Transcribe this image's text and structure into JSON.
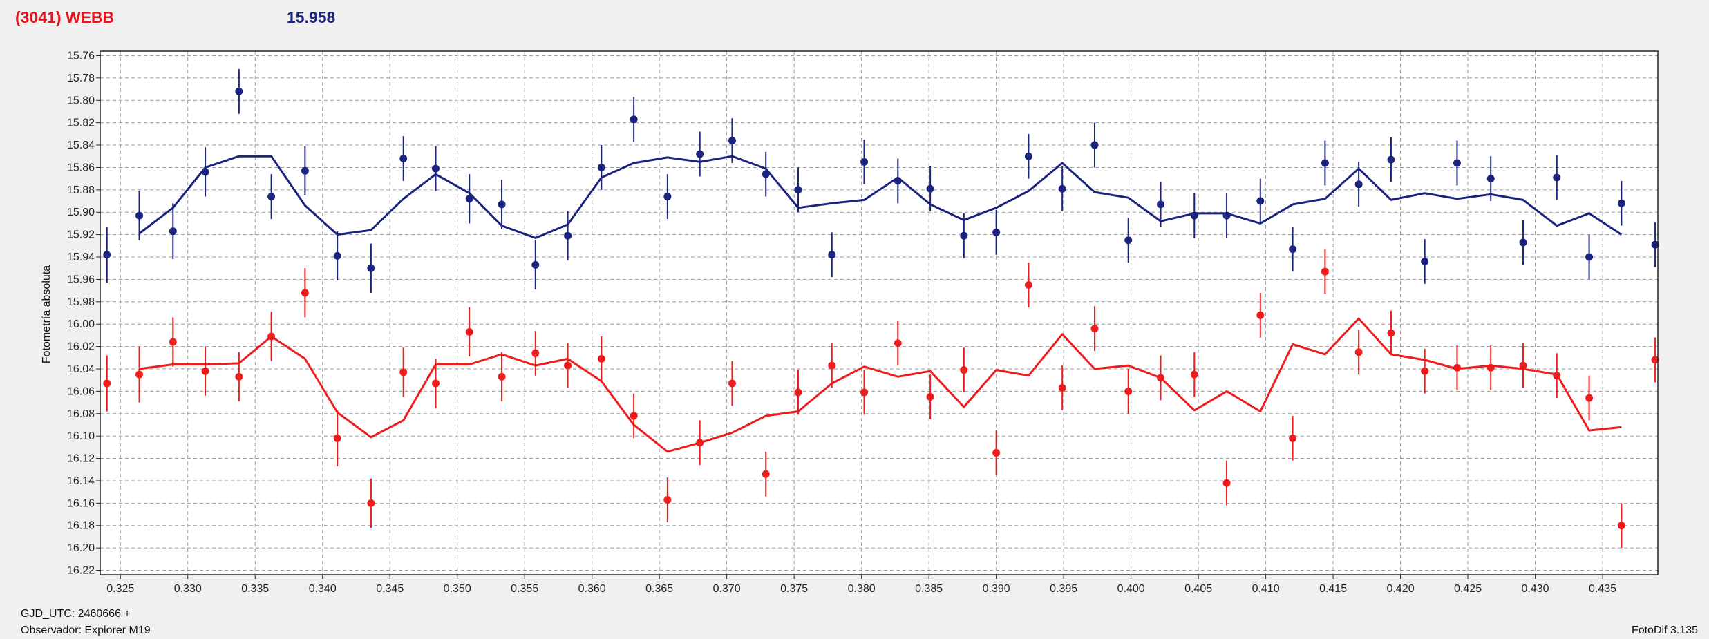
{
  "header": {
    "title": "(3041) WEBB",
    "value": "15.958"
  },
  "footer": {
    "gjd": "GJD_UTC: 2460666 +",
    "observer": "Observador: Explorer M19",
    "software": "FotoDif 3.135"
  },
  "colors": {
    "blue_series": "#1a237e",
    "red_series": "#ee1c1c",
    "title": "#e8141c",
    "value": "#1a2580"
  },
  "chart_data": {
    "type": "scatter",
    "ylabel": "Fotometría absoluta",
    "xlabel": "",
    "xlim": [
      0.3235,
      0.4391
    ],
    "ylim": [
      16.224,
      15.756
    ],
    "y_inverted": true,
    "grid": true,
    "xticks": [
      "0.325",
      "0.330",
      "0.335",
      "0.340",
      "0.345",
      "0.350",
      "0.355",
      "0.360",
      "0.365",
      "0.370",
      "0.375",
      "0.380",
      "0.385",
      "0.390",
      "0.395",
      "0.400",
      "0.405",
      "0.410",
      "0.415",
      "0.420",
      "0.425",
      "0.430",
      "0.435"
    ],
    "yticks": [
      "15.76",
      "15.78",
      "15.80",
      "15.82",
      "15.84",
      "15.86",
      "15.88",
      "15.90",
      "15.92",
      "15.94",
      "15.96",
      "15.98",
      "16.00",
      "16.02",
      "16.04",
      "16.06",
      "16.08",
      "16.10",
      "16.12",
      "16.14",
      "16.16",
      "16.18",
      "16.20",
      "16.22"
    ],
    "series": [
      {
        "color": "#1a237e",
        "points": [
          {
            "x": 0.324,
            "y": 15.938,
            "e": 0.025
          },
          {
            "x": 0.3264,
            "y": 15.903,
            "e": 0.022
          },
          {
            "x": 0.3289,
            "y": 15.917,
            "e": 0.025
          },
          {
            "x": 0.3313,
            "y": 15.864,
            "e": 0.022
          },
          {
            "x": 0.3338,
            "y": 15.792,
            "e": 0.02
          },
          {
            "x": 0.3362,
            "y": 15.886,
            "e": 0.02
          },
          {
            "x": 0.3387,
            "y": 15.863,
            "e": 0.022
          },
          {
            "x": 0.3411,
            "y": 15.939,
            "e": 0.022
          },
          {
            "x": 0.3436,
            "y": 15.95,
            "e": 0.022
          },
          {
            "x": 0.346,
            "y": 15.852,
            "e": 0.02
          },
          {
            "x": 0.3484,
            "y": 15.861,
            "e": 0.02
          },
          {
            "x": 0.3509,
            "y": 15.888,
            "e": 0.022
          },
          {
            "x": 0.3533,
            "y": 15.893,
            "e": 0.022
          },
          {
            "x": 0.3558,
            "y": 15.947,
            "e": 0.022
          },
          {
            "x": 0.3582,
            "y": 15.921,
            "e": 0.022
          },
          {
            "x": 0.3607,
            "y": 15.86,
            "e": 0.02
          },
          {
            "x": 0.3631,
            "y": 15.817,
            "e": 0.02
          },
          {
            "x": 0.3656,
            "y": 15.886,
            "e": 0.02
          },
          {
            "x": 0.368,
            "y": 15.848,
            "e": 0.02
          },
          {
            "x": 0.3704,
            "y": 15.836,
            "e": 0.02
          },
          {
            "x": 0.3729,
            "y": 15.866,
            "e": 0.02
          },
          {
            "x": 0.3753,
            "y": 15.88,
            "e": 0.02
          },
          {
            "x": 0.3778,
            "y": 15.938,
            "e": 0.02
          },
          {
            "x": 0.3802,
            "y": 15.855,
            "e": 0.02
          },
          {
            "x": 0.3827,
            "y": 15.872,
            "e": 0.02
          },
          {
            "x": 0.3851,
            "y": 15.879,
            "e": 0.02
          },
          {
            "x": 0.3876,
            "y": 15.921,
            "e": 0.02
          },
          {
            "x": 0.39,
            "y": 15.918,
            "e": 0.02
          },
          {
            "x": 0.3924,
            "y": 15.85,
            "e": 0.02
          },
          {
            "x": 0.3949,
            "y": 15.879,
            "e": 0.02
          },
          {
            "x": 0.3973,
            "y": 15.84,
            "e": 0.02
          },
          {
            "x": 0.3998,
            "y": 15.925,
            "e": 0.02
          },
          {
            "x": 0.4022,
            "y": 15.893,
            "e": 0.02
          },
          {
            "x": 0.4047,
            "y": 15.903,
            "e": 0.02
          },
          {
            "x": 0.4071,
            "y": 15.903,
            "e": 0.02
          },
          {
            "x": 0.4096,
            "y": 15.89,
            "e": 0.02
          },
          {
            "x": 0.412,
            "y": 15.933,
            "e": 0.02
          },
          {
            "x": 0.4144,
            "y": 15.856,
            "e": 0.02
          },
          {
            "x": 0.4169,
            "y": 15.875,
            "e": 0.02
          },
          {
            "x": 0.4193,
            "y": 15.853,
            "e": 0.02
          },
          {
            "x": 0.4218,
            "y": 15.944,
            "e": 0.02
          },
          {
            "x": 0.4242,
            "y": 15.856,
            "e": 0.02
          },
          {
            "x": 0.4267,
            "y": 15.87,
            "e": 0.02
          },
          {
            "x": 0.4291,
            "y": 15.927,
            "e": 0.02
          },
          {
            "x": 0.4316,
            "y": 15.869,
            "e": 0.02
          },
          {
            "x": 0.434,
            "y": 15.94,
            "e": 0.02
          },
          {
            "x": 0.4364,
            "y": 15.892,
            "e": 0.02
          },
          {
            "x": 0.4389,
            "y": 15.929,
            "e": 0.02
          }
        ],
        "line": [
          [
            0.3264,
            15.919
          ],
          [
            0.3289,
            15.896
          ],
          [
            0.3313,
            15.86
          ],
          [
            0.3338,
            15.85
          ],
          [
            0.3362,
            15.85
          ],
          [
            0.3387,
            15.894
          ],
          [
            0.3411,
            15.92
          ],
          [
            0.3436,
            15.916
          ],
          [
            0.346,
            15.888
          ],
          [
            0.3484,
            15.866
          ],
          [
            0.3509,
            15.883
          ],
          [
            0.3533,
            15.912
          ],
          [
            0.3558,
            15.923
          ],
          [
            0.3582,
            15.911
          ],
          [
            0.3607,
            15.869
          ],
          [
            0.3631,
            15.856
          ],
          [
            0.3656,
            15.851
          ],
          [
            0.368,
            15.855
          ],
          [
            0.3704,
            15.85
          ],
          [
            0.3729,
            15.861
          ],
          [
            0.3753,
            15.896
          ],
          [
            0.3778,
            15.892
          ],
          [
            0.3802,
            15.889
          ],
          [
            0.3827,
            15.869
          ],
          [
            0.3851,
            15.893
          ],
          [
            0.3876,
            15.907
          ],
          [
            0.39,
            15.896
          ],
          [
            0.3924,
            15.881
          ],
          [
            0.3949,
            15.856
          ],
          [
            0.3973,
            15.882
          ],
          [
            0.3998,
            15.887
          ],
          [
            0.4022,
            15.908
          ],
          [
            0.4047,
            15.901
          ],
          [
            0.4071,
            15.901
          ],
          [
            0.4096,
            15.91
          ],
          [
            0.412,
            15.893
          ],
          [
            0.4144,
            15.888
          ],
          [
            0.4169,
            15.861
          ],
          [
            0.4193,
            15.889
          ],
          [
            0.4218,
            15.883
          ],
          [
            0.4242,
            15.888
          ],
          [
            0.4267,
            15.884
          ],
          [
            0.4291,
            15.889
          ],
          [
            0.4316,
            15.912
          ],
          [
            0.434,
            15.901
          ],
          [
            0.4364,
            15.92
          ]
        ]
      },
      {
        "color": "#ee1c1c",
        "points": [
          {
            "x": 0.324,
            "y": 16.053,
            "e": 0.025
          },
          {
            "x": 0.3264,
            "y": 16.045,
            "e": 0.025
          },
          {
            "x": 0.3289,
            "y": 16.016,
            "e": 0.022
          },
          {
            "x": 0.3313,
            "y": 16.042,
            "e": 0.022
          },
          {
            "x": 0.3338,
            "y": 16.047,
            "e": 0.022
          },
          {
            "x": 0.3362,
            "y": 16.011,
            "e": 0.022
          },
          {
            "x": 0.3387,
            "y": 15.972,
            "e": 0.022
          },
          {
            "x": 0.3411,
            "y": 16.102,
            "e": 0.025
          },
          {
            "x": 0.3436,
            "y": 16.16,
            "e": 0.022
          },
          {
            "x": 0.346,
            "y": 16.043,
            "e": 0.022
          },
          {
            "x": 0.3484,
            "y": 16.053,
            "e": 0.022
          },
          {
            "x": 0.3509,
            "y": 16.007,
            "e": 0.022
          },
          {
            "x": 0.3533,
            "y": 16.047,
            "e": 0.022
          },
          {
            "x": 0.3558,
            "y": 16.026,
            "e": 0.02
          },
          {
            "x": 0.3582,
            "y": 16.037,
            "e": 0.02
          },
          {
            "x": 0.3607,
            "y": 16.031,
            "e": 0.02
          },
          {
            "x": 0.3631,
            "y": 16.082,
            "e": 0.02
          },
          {
            "x": 0.3656,
            "y": 16.157,
            "e": 0.02
          },
          {
            "x": 0.368,
            "y": 16.106,
            "e": 0.02
          },
          {
            "x": 0.3704,
            "y": 16.053,
            "e": 0.02
          },
          {
            "x": 0.3729,
            "y": 16.134,
            "e": 0.02
          },
          {
            "x": 0.3753,
            "y": 16.061,
            "e": 0.02
          },
          {
            "x": 0.3778,
            "y": 16.037,
            "e": 0.02
          },
          {
            "x": 0.3802,
            "y": 16.061,
            "e": 0.02
          },
          {
            "x": 0.3827,
            "y": 16.017,
            "e": 0.02
          },
          {
            "x": 0.3851,
            "y": 16.065,
            "e": 0.02
          },
          {
            "x": 0.3876,
            "y": 16.041,
            "e": 0.02
          },
          {
            "x": 0.39,
            "y": 16.115,
            "e": 0.02
          },
          {
            "x": 0.3924,
            "y": 15.965,
            "e": 0.02
          },
          {
            "x": 0.3949,
            "y": 16.057,
            "e": 0.02
          },
          {
            "x": 0.3973,
            "y": 16.004,
            "e": 0.02
          },
          {
            "x": 0.3998,
            "y": 16.06,
            "e": 0.02
          },
          {
            "x": 0.4022,
            "y": 16.048,
            "e": 0.02
          },
          {
            "x": 0.4047,
            "y": 16.045,
            "e": 0.02
          },
          {
            "x": 0.4071,
            "y": 16.142,
            "e": 0.02
          },
          {
            "x": 0.4096,
            "y": 15.992,
            "e": 0.02
          },
          {
            "x": 0.412,
            "y": 16.102,
            "e": 0.02
          },
          {
            "x": 0.4144,
            "y": 15.953,
            "e": 0.02
          },
          {
            "x": 0.4169,
            "y": 16.025,
            "e": 0.02
          },
          {
            "x": 0.4193,
            "y": 16.008,
            "e": 0.02
          },
          {
            "x": 0.4218,
            "y": 16.042,
            "e": 0.02
          },
          {
            "x": 0.4242,
            "y": 16.039,
            "e": 0.02
          },
          {
            "x": 0.4267,
            "y": 16.039,
            "e": 0.02
          },
          {
            "x": 0.4291,
            "y": 16.037,
            "e": 0.02
          },
          {
            "x": 0.4316,
            "y": 16.046,
            "e": 0.02
          },
          {
            "x": 0.434,
            "y": 16.066,
            "e": 0.02
          },
          {
            "x": 0.4364,
            "y": 16.18,
            "e": 0.02
          },
          {
            "x": 0.4389,
            "y": 16.032,
            "e": 0.02
          }
        ],
        "line": [
          [
            0.3264,
            16.04
          ],
          [
            0.3289,
            16.036
          ],
          [
            0.3313,
            16.036
          ],
          [
            0.3338,
            16.035
          ],
          [
            0.3362,
            16.011
          ],
          [
            0.3387,
            16.031
          ],
          [
            0.3411,
            16.079
          ],
          [
            0.3436,
            16.101
          ],
          [
            0.346,
            16.086
          ],
          [
            0.3484,
            16.036
          ],
          [
            0.3509,
            16.036
          ],
          [
            0.3533,
            16.027
          ],
          [
            0.3558,
            16.037
          ],
          [
            0.3582,
            16.031
          ],
          [
            0.3607,
            16.051
          ],
          [
            0.3631,
            16.09
          ],
          [
            0.3656,
            16.114
          ],
          [
            0.368,
            16.106
          ],
          [
            0.3704,
            16.097
          ],
          [
            0.3729,
            16.082
          ],
          [
            0.3753,
            16.078
          ],
          [
            0.3778,
            16.053
          ],
          [
            0.3802,
            16.038
          ],
          [
            0.3827,
            16.047
          ],
          [
            0.3851,
            16.042
          ],
          [
            0.3876,
            16.074
          ],
          [
            0.39,
            16.041
          ],
          [
            0.3924,
            16.046
          ],
          [
            0.3949,
            16.009
          ],
          [
            0.3973,
            16.04
          ],
          [
            0.3998,
            16.037
          ],
          [
            0.4022,
            16.048
          ],
          [
            0.4047,
            16.077
          ],
          [
            0.4071,
            16.06
          ],
          [
            0.4096,
            16.078
          ],
          [
            0.412,
            16.018
          ],
          [
            0.4144,
            16.027
          ],
          [
            0.4169,
            15.995
          ],
          [
            0.4193,
            16.027
          ],
          [
            0.4218,
            16.032
          ],
          [
            0.4242,
            16.04
          ],
          [
            0.4267,
            16.037
          ],
          [
            0.4291,
            16.04
          ],
          [
            0.4316,
            16.045
          ],
          [
            0.434,
            16.095
          ],
          [
            0.4364,
            16.092
          ]
        ]
      }
    ]
  }
}
